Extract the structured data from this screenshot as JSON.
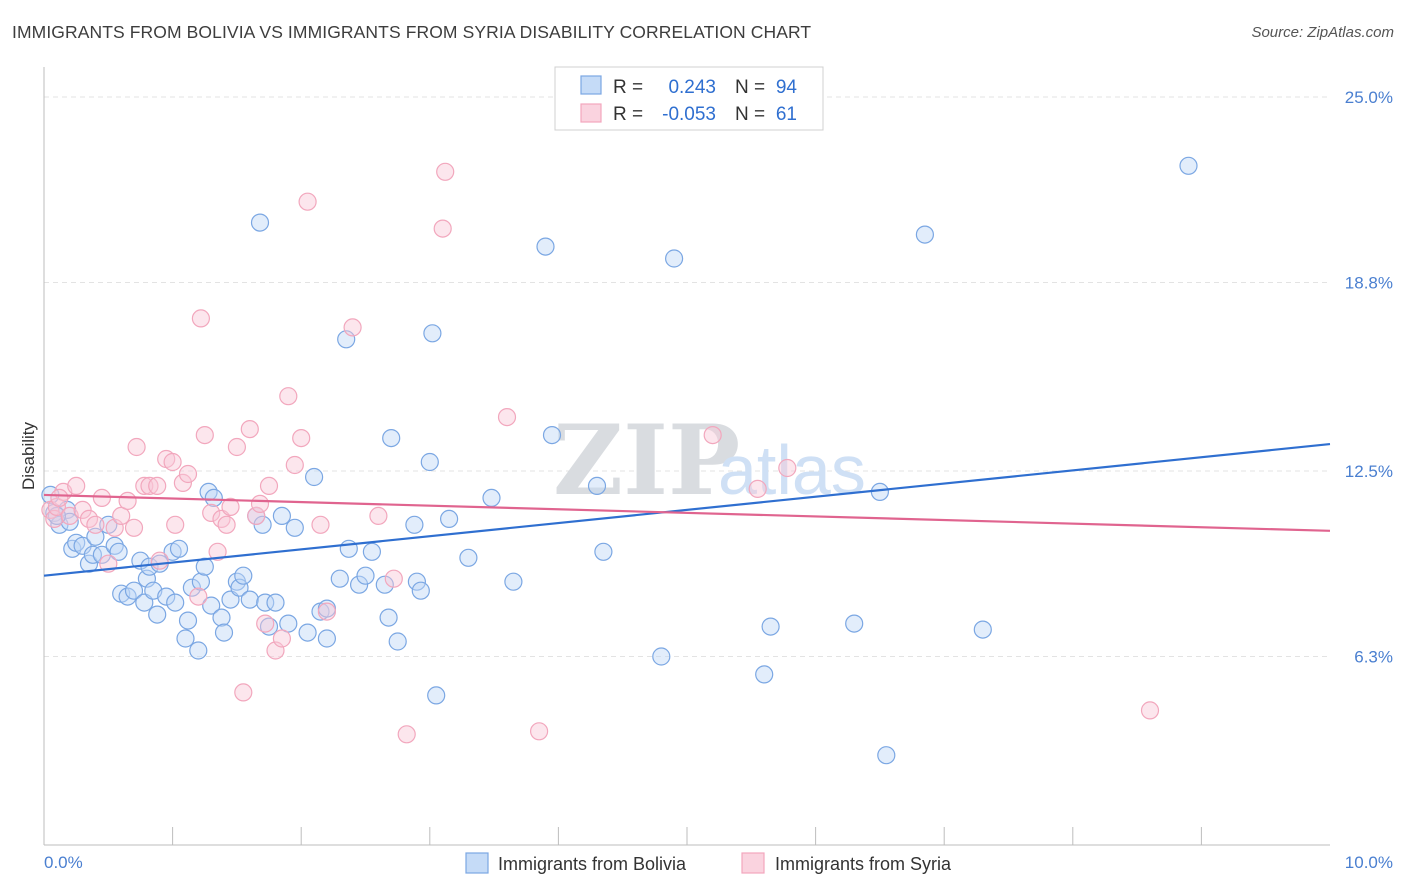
{
  "chart_data": {
    "type": "scatter",
    "title": "IMMIGRANTS FROM BOLIVIA VS IMMIGRANTS FROM SYRIA DISABILITY CORRELATION CHART",
    "source": "Source: ZipAtlas.com",
    "xlabel": "",
    "ylabel": "Disability",
    "xlim": [
      0,
      10
    ],
    "ylim": [
      0,
      25.6
    ],
    "x_tick_labels": [
      "0.0%",
      "10.0%"
    ],
    "y_ticks": [
      {
        "value": 25.0,
        "label": "25.0%"
      },
      {
        "value": 18.8,
        "label": "18.8%"
      },
      {
        "value": 12.5,
        "label": "12.5%"
      },
      {
        "value": 6.3,
        "label": "6.3%"
      }
    ],
    "legend": {
      "rows": [
        {
          "r_label": "R = ",
          "r_value": "0.243",
          "n_label": "N = ",
          "n_value": "94"
        },
        {
          "r_label": "R = ",
          "r_value": "-0.053",
          "n_label": "N = ",
          "n_value": "61"
        }
      ]
    },
    "watermark": {
      "zip": "ZIP",
      "atlas": "atlas"
    },
    "series": [
      {
        "name": "Immigrants from Bolivia",
        "color": "#7ba7e3",
        "line_color": "#2f6fd0",
        "trend": {
          "x0": 0,
          "y0": 9.0,
          "x1": 10,
          "y1": 13.4
        },
        "points": [
          [
            0.08,
            11.1
          ],
          [
            0.12,
            10.7
          ],
          [
            0.18,
            11.2
          ],
          [
            0.2,
            10.8
          ],
          [
            0.22,
            9.9
          ],
          [
            0.25,
            10.1
          ],
          [
            0.3,
            10.0
          ],
          [
            0.35,
            9.4
          ],
          [
            0.38,
            9.7
          ],
          [
            0.4,
            10.3
          ],
          [
            0.45,
            9.7
          ],
          [
            0.5,
            10.7
          ],
          [
            0.55,
            10.0
          ],
          [
            0.58,
            9.8
          ],
          [
            0.6,
            8.4
          ],
          [
            0.65,
            8.3
          ],
          [
            0.7,
            8.5
          ],
          [
            0.75,
            9.5
          ],
          [
            0.78,
            8.1
          ],
          [
            0.8,
            8.9
          ],
          [
            0.82,
            9.3
          ],
          [
            0.85,
            8.5
          ],
          [
            0.88,
            7.7
          ],
          [
            0.9,
            9.4
          ],
          [
            0.95,
            8.3
          ],
          [
            1.0,
            9.8
          ],
          [
            1.02,
            8.1
          ],
          [
            1.05,
            9.9
          ],
          [
            1.1,
            6.9
          ],
          [
            1.12,
            7.5
          ],
          [
            1.15,
            8.6
          ],
          [
            1.2,
            6.5
          ],
          [
            1.22,
            8.8
          ],
          [
            1.25,
            9.3
          ],
          [
            1.28,
            11.8
          ],
          [
            1.3,
            8.0
          ],
          [
            1.32,
            11.6
          ],
          [
            1.38,
            7.6
          ],
          [
            1.4,
            7.1
          ],
          [
            1.45,
            8.2
          ],
          [
            1.5,
            8.8
          ],
          [
            1.52,
            8.6
          ],
          [
            1.55,
            9.0
          ],
          [
            1.6,
            8.2
          ],
          [
            1.65,
            11.0
          ],
          [
            1.68,
            20.8
          ],
          [
            1.7,
            10.7
          ],
          [
            1.72,
            8.1
          ],
          [
            1.75,
            7.3
          ],
          [
            1.8,
            8.1
          ],
          [
            1.85,
            11.0
          ],
          [
            1.9,
            7.4
          ],
          [
            1.95,
            10.6
          ],
          [
            2.05,
            7.1
          ],
          [
            2.1,
            12.3
          ],
          [
            2.15,
            7.8
          ],
          [
            2.2,
            6.9
          ],
          [
            2.2,
            7.9
          ],
          [
            2.3,
            8.9
          ],
          [
            2.35,
            16.9
          ],
          [
            2.37,
            9.9
          ],
          [
            2.45,
            8.7
          ],
          [
            2.5,
            9.0
          ],
          [
            2.55,
            9.8
          ],
          [
            2.65,
            8.7
          ],
          [
            2.68,
            7.6
          ],
          [
            2.7,
            13.6
          ],
          [
            2.75,
            6.8
          ],
          [
            2.88,
            10.7
          ],
          [
            2.9,
            8.8
          ],
          [
            2.93,
            8.5
          ],
          [
            3.0,
            12.8
          ],
          [
            3.02,
            17.1
          ],
          [
            3.05,
            5.0
          ],
          [
            3.15,
            10.9
          ],
          [
            3.3,
            9.6
          ],
          [
            3.48,
            11.6
          ],
          [
            3.65,
            8.8
          ],
          [
            3.9,
            20.0
          ],
          [
            3.95,
            13.7
          ],
          [
            4.3,
            12.0
          ],
          [
            4.35,
            9.8
          ],
          [
            4.8,
            6.3
          ],
          [
            4.9,
            19.6
          ],
          [
            5.6,
            5.7
          ],
          [
            5.65,
            7.3
          ],
          [
            6.3,
            7.4
          ],
          [
            6.5,
            11.8
          ],
          [
            6.55,
            3.0
          ],
          [
            6.85,
            20.4
          ],
          [
            7.3,
            7.2
          ],
          [
            8.9,
            22.7
          ],
          [
            0.05,
            11.7
          ],
          [
            0.1,
            11.0
          ]
        ]
      },
      {
        "name": "Immigrants from Syria",
        "color": "#f2a7bd",
        "line_color": "#e0648f",
        "trend": {
          "x0": 0,
          "y0": 11.7,
          "x1": 10,
          "y1": 10.5
        },
        "points": [
          [
            0.05,
            11.2
          ],
          [
            0.08,
            10.9
          ],
          [
            0.1,
            11.3
          ],
          [
            0.15,
            11.8
          ],
          [
            0.2,
            11.0
          ],
          [
            0.25,
            12.0
          ],
          [
            0.3,
            11.2
          ],
          [
            0.35,
            10.9
          ],
          [
            0.4,
            10.7
          ],
          [
            0.45,
            11.6
          ],
          [
            0.5,
            9.4
          ],
          [
            0.55,
            10.6
          ],
          [
            0.6,
            11.0
          ],
          [
            0.65,
            11.5
          ],
          [
            0.7,
            10.6
          ],
          [
            0.72,
            13.3
          ],
          [
            0.78,
            12.0
          ],
          [
            0.82,
            12.0
          ],
          [
            0.88,
            12.0
          ],
          [
            0.9,
            9.5
          ],
          [
            0.95,
            12.9
          ],
          [
            1.0,
            12.8
          ],
          [
            1.02,
            10.7
          ],
          [
            1.08,
            12.1
          ],
          [
            1.12,
            12.4
          ],
          [
            1.2,
            8.3
          ],
          [
            1.22,
            17.6
          ],
          [
            1.25,
            13.7
          ],
          [
            1.3,
            11.1
          ],
          [
            1.35,
            9.8
          ],
          [
            1.38,
            10.9
          ],
          [
            1.42,
            10.7
          ],
          [
            1.45,
            11.3
          ],
          [
            1.5,
            13.3
          ],
          [
            1.55,
            5.1
          ],
          [
            1.6,
            13.9
          ],
          [
            1.65,
            11.0
          ],
          [
            1.68,
            11.4
          ],
          [
            1.72,
            7.4
          ],
          [
            1.75,
            12.0
          ],
          [
            1.8,
            6.5
          ],
          [
            1.85,
            6.9
          ],
          [
            1.9,
            15.0
          ],
          [
            1.95,
            12.7
          ],
          [
            2.0,
            13.6
          ],
          [
            2.05,
            21.5
          ],
          [
            2.15,
            10.7
          ],
          [
            2.2,
            7.8
          ],
          [
            2.4,
            17.3
          ],
          [
            2.6,
            11.0
          ],
          [
            2.72,
            8.9
          ],
          [
            2.82,
            3.7
          ],
          [
            3.1,
            20.6
          ],
          [
            3.12,
            22.5
          ],
          [
            3.6,
            14.3
          ],
          [
            3.85,
            3.8
          ],
          [
            5.2,
            13.7
          ],
          [
            5.55,
            11.9
          ],
          [
            5.78,
            12.6
          ],
          [
            8.6,
            4.5
          ],
          [
            0.12,
            11.6
          ]
        ]
      }
    ]
  }
}
